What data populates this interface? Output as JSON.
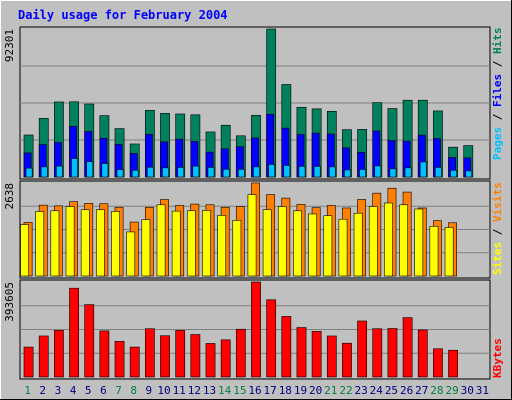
{
  "chart_data": {
    "type": "bar",
    "title": "Daily usage for February 2004",
    "x_labels": [
      "1",
      "2",
      "3",
      "4",
      "5",
      "6",
      "7",
      "8",
      "9",
      "10",
      "11",
      "12",
      "13",
      "14",
      "15",
      "16",
      "17",
      "18",
      "19",
      "20",
      "21",
      "22",
      "23",
      "24",
      "25",
      "26",
      "27",
      "28",
      "29",
      "30",
      "31"
    ],
    "weekend_days": [
      "1",
      "7",
      "8",
      "14",
      "15",
      "21",
      "22",
      "28",
      "29"
    ],
    "panels": [
      {
        "id": "hits",
        "max_label": "92301",
        "ylim": [
          0,
          92301
        ],
        "series": [
          {
            "name": "Hits",
            "color": "#00805c",
            "values": [
              26200,
              36600,
              46800,
              46900,
              45500,
              38300,
              30200,
              20600,
              41600,
              39700,
              39300,
              38800,
              28100,
              32300,
              25700,
              38500,
              92301,
              57700,
              43500,
              42500,
              41000,
              29500,
              29700,
              46400,
              42700,
              47900,
              47900,
              41200,
              18600,
              19600
            ]
          },
          {
            "name": "Files",
            "color": "#0000ff",
            "values": [
              15000,
              20200,
              21500,
              31600,
              28400,
              24200,
              20300,
              14700,
              26600,
              21900,
              23600,
              22200,
              15500,
              17600,
              18900,
              24400,
              39100,
              30500,
              26500,
              27400,
              26800,
              18200,
              15400,
              28700,
              22800,
              22400,
              26100,
              24000,
              12200,
              11900
            ]
          },
          {
            "name": "Pages",
            "color": "#00c0ff",
            "values": [
              5500,
              6300,
              6800,
              11500,
              9600,
              8400,
              4600,
              4200,
              6100,
              5700,
              6000,
              6800,
              6000,
              4800,
              4800,
              6300,
              7800,
              7200,
              6600,
              6600,
              6300,
              4400,
              4700,
              6900,
              5100,
              5700,
              9400,
              6000,
              4200,
              3800
            ]
          }
        ],
        "legend": [
          "Pages",
          "Files",
          "Hits"
        ]
      },
      {
        "id": "visits",
        "max_label": "2638",
        "ylim": [
          0,
          2638
        ],
        "series": [
          {
            "name": "Visits",
            "color": "#ff8000",
            "values": [
              1520,
              2010,
              1990,
              2110,
              2060,
              2050,
              1950,
              1530,
              1950,
              2170,
              2000,
              2040,
              2020,
              1950,
              1970,
              2638,
              2310,
              2210,
              2030,
              1940,
              2000,
              1930,
              2170,
              2350,
              2490,
              2380,
              1930,
              1570,
              1510,
              0
            ]
          },
          {
            "name": "Sites",
            "color": "#ffff00",
            "values": [
              1460,
              1830,
              1850,
              1970,
              1880,
              1880,
              1830,
              1250,
              1600,
              2020,
              1840,
              1850,
              1860,
              1720,
              1580,
              2310,
              1880,
              1970,
              1850,
              1760,
              1710,
              1610,
              1780,
              1970,
              2070,
              2020,
              1900,
              1410,
              1380,
              0
            ]
          }
        ],
        "legend": [
          "Sites",
          "Visits"
        ]
      },
      {
        "id": "kbytes",
        "max_label": "393605",
        "ylim": [
          0,
          393605
        ],
        "series": [
          {
            "name": "KBytes",
            "color": "#ff0000",
            "values": [
              124000,
              170000,
              193000,
              368000,
              300000,
              191000,
              148000,
              124000,
              200000,
              171000,
              193000,
              176000,
              139000,
              154000,
              198000,
              393605,
              320000,
              251000,
              205000,
              189000,
              170000,
              140000,
              232000,
              200000,
              201000,
              246000,
              195000,
              117000,
              111000,
              0
            ]
          }
        ],
        "legend": [
          "KBytes"
        ]
      }
    ],
    "legend_separator": "/",
    "colors": {
      "background": "#c0c0c0",
      "title": "#0000ff",
      "weekday_label": "#000080",
      "weekend_label": "#008040",
      "plot_bg": "#c0c0c0",
      "grid": "#808080"
    }
  }
}
